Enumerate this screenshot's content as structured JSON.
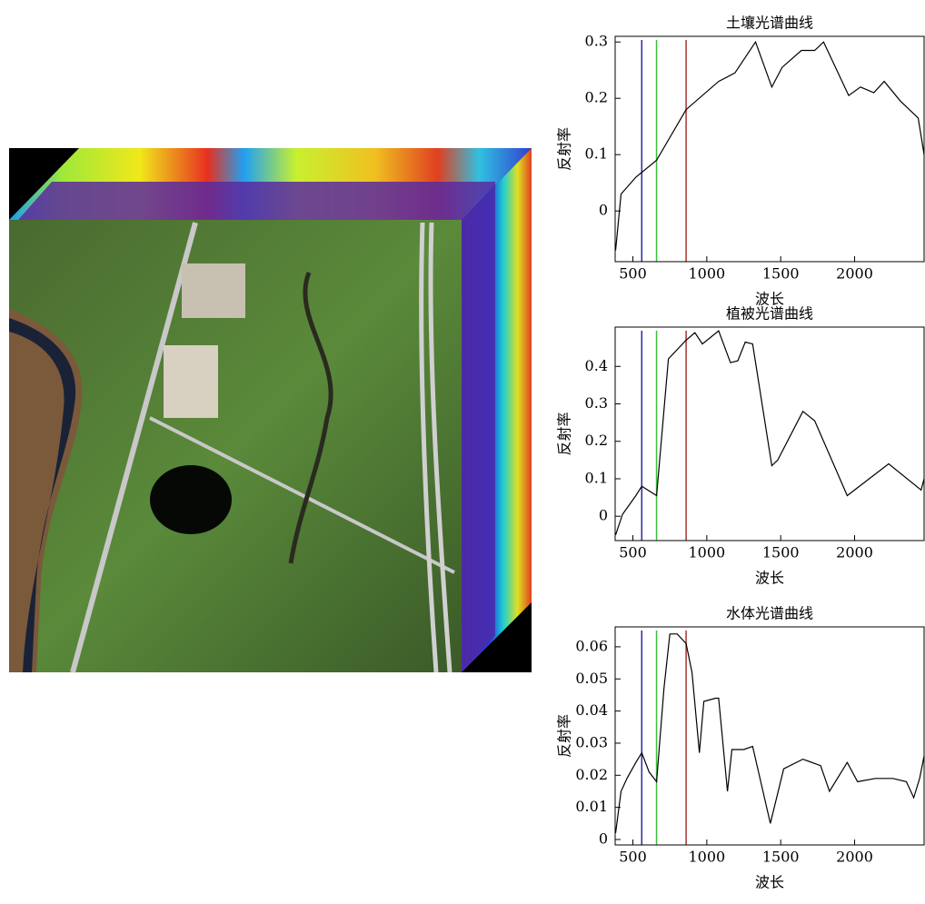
{
  "chart_data": [
    {
      "type": "line",
      "title": "土壤光谱曲线",
      "x_label": "波长",
      "y_label": "反射率",
      "x": [
        383,
        420,
        520,
        660,
        860,
        1080,
        1190,
        1330,
        1440,
        1510,
        1640,
        1730,
        1790,
        1960,
        2040,
        2130,
        2200,
        2310,
        2430,
        2470
      ],
      "series": [
        {
          "color": "#000000",
          "values": [
            -0.07,
            0.03,
            0.06,
            0.09,
            0.18,
            0.23,
            0.245,
            0.3,
            0.22,
            0.255,
            0.285,
            0.285,
            0.3,
            0.205,
            0.22,
            0.21,
            0.23,
            0.195,
            0.165,
            0.1
          ]
        }
      ],
      "band_lines": [
        {
          "value": 560,
          "color": "#2a2aa0"
        },
        {
          "value": 660,
          "color": "#3cc23c"
        },
        {
          "value": 860,
          "color": "#a83232"
        }
      ],
      "xlim": [
        380,
        2470
      ],
      "xticks": [
        500,
        1000,
        1500,
        2000
      ],
      "ylim": [
        -0.09,
        0.31
      ],
      "yticks": [
        0,
        0.1,
        0.2,
        0.3
      ]
    },
    {
      "type": "line",
      "title": "植被光谱曲线",
      "x_label": "波长",
      "y_label": "反射率",
      "x": [
        383,
        430,
        520,
        560,
        660,
        740,
        860,
        920,
        970,
        1080,
        1160,
        1210,
        1260,
        1310,
        1440,
        1480,
        1650,
        1730,
        1950,
        2230,
        2450,
        2470
      ],
      "series": [
        {
          "color": "#000000",
          "values": [
            -0.05,
            0.005,
            0.055,
            0.08,
            0.055,
            0.42,
            0.47,
            0.49,
            0.46,
            0.495,
            0.41,
            0.415,
            0.465,
            0.46,
            0.135,
            0.15,
            0.28,
            0.255,
            0.055,
            0.14,
            0.07,
            0.1
          ]
        }
      ],
      "band_lines": [
        {
          "value": 560,
          "color": "#2a2aa0"
        },
        {
          "value": 660,
          "color": "#3cc23c"
        },
        {
          "value": 860,
          "color": "#a83232"
        }
      ],
      "xlim": [
        380,
        2470
      ],
      "xticks": [
        500,
        1000,
        1500,
        2000
      ],
      "ylim": [
        -0.065,
        0.505
      ],
      "yticks": [
        0,
        0.1,
        0.2,
        0.3,
        0.4
      ]
    },
    {
      "type": "line",
      "title": "水体光谱曲线",
      "x_label": "波长",
      "y_label": "反射率",
      "x": [
        383,
        420,
        460,
        520,
        560,
        610,
        660,
        710,
        750,
        800,
        860,
        900,
        950,
        980,
        1060,
        1080,
        1140,
        1170,
        1250,
        1310,
        1430,
        1520,
        1650,
        1770,
        1830,
        1950,
        2020,
        2140,
        2260,
        2350,
        2400,
        2440,
        2470
      ],
      "series": [
        {
          "color": "#000000",
          "values": [
            0.002,
            0.015,
            0.019,
            0.024,
            0.027,
            0.021,
            0.018,
            0.047,
            0.064,
            0.064,
            0.061,
            0.052,
            0.027,
            0.043,
            0.044,
            0.044,
            0.015,
            0.028,
            0.028,
            0.029,
            0.005,
            0.022,
            0.025,
            0.023,
            0.015,
            0.024,
            0.018,
            0.019,
            0.019,
            0.018,
            0.013,
            0.019,
            0.026
          ]
        }
      ],
      "band_lines": [
        {
          "value": 560,
          "color": "#2a2aa0"
        },
        {
          "value": 660,
          "color": "#3cc23c"
        },
        {
          "value": 860,
          "color": "#a83232"
        }
      ],
      "xlim": [
        380,
        2470
      ],
      "xticks": [
        500,
        1000,
        1500,
        2000
      ],
      "ylim": [
        -0.0017,
        0.0662
      ],
      "yticks": [
        0,
        0.01,
        0.02,
        0.03,
        0.04,
        0.05,
        0.06
      ]
    }
  ]
}
